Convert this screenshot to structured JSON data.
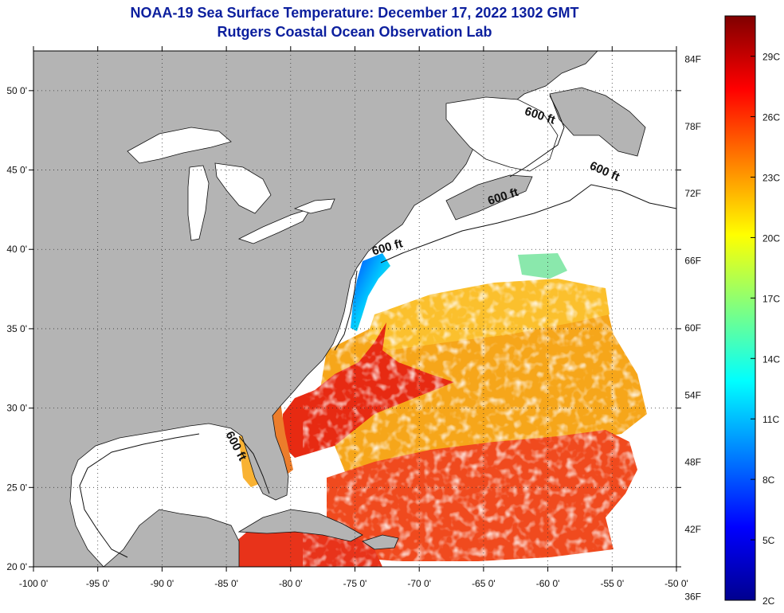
{
  "title": {
    "line1": "NOAA-19 Sea Surface Temperature:  December 17, 2022 1302 GMT",
    "line2": "Rutgers Coastal Ocean Observation Lab"
  },
  "map": {
    "lon_range": [
      -100,
      -50
    ],
    "lat_range": [
      20,
      52.5
    ],
    "lon_ticks": [
      {
        "value": -100,
        "label": "-100 0'"
      },
      {
        "value": -95,
        "label": "-95 0'"
      },
      {
        "value": -90,
        "label": "-90 0'"
      },
      {
        "value": -85,
        "label": "-85 0'"
      },
      {
        "value": -80,
        "label": "-80 0'"
      },
      {
        "value": -75,
        "label": "-75 0'"
      },
      {
        "value": -70,
        "label": "-70 0'"
      },
      {
        "value": -65,
        "label": "-65 0'"
      },
      {
        "value": -60,
        "label": "-60 0'"
      },
      {
        "value": -55,
        "label": "-55 0'"
      },
      {
        "value": -50,
        "label": "-50 0'"
      }
    ],
    "lat_ticks": [
      {
        "value": 20,
        "label": "20 0'"
      },
      {
        "value": 25,
        "label": "25 0'"
      },
      {
        "value": 30,
        "label": "30 0'"
      },
      {
        "value": 35,
        "label": "35 0'"
      },
      {
        "value": 40,
        "label": "40 0'"
      },
      {
        "value": 45,
        "label": "45 0'"
      },
      {
        "value": 50,
        "label": "50 0'"
      }
    ],
    "contour_labels": [
      {
        "text": "600 ft",
        "lon": -60.7,
        "lat": 48.2,
        "rotate": 18
      },
      {
        "text": "600 ft",
        "lon": -55.7,
        "lat": 44.7,
        "rotate": 24
      },
      {
        "text": "600 ft",
        "lon": -63.4,
        "lat": 43.1,
        "rotate": -18
      },
      {
        "text": "600 ft",
        "lon": -72.4,
        "lat": 39.9,
        "rotate": -16
      },
      {
        "text": "600 ft",
        "lon": -84.5,
        "lat": 27.5,
        "rotate": 62
      }
    ],
    "colors": {
      "land": "#b4b4b4",
      "ocean_no_data": "#ffffff",
      "grid": "#333333"
    }
  },
  "colorbar": {
    "fahrenheit_labels": [
      {
        "value": 84,
        "label": "84F"
      },
      {
        "value": 78,
        "label": "78F"
      },
      {
        "value": 72,
        "label": "72F"
      },
      {
        "value": 66,
        "label": "66F"
      },
      {
        "value": 60,
        "label": "60F"
      },
      {
        "value": 54,
        "label": "54F"
      },
      {
        "value": 48,
        "label": "48F"
      },
      {
        "value": 42,
        "label": "42F"
      },
      {
        "value": 36,
        "label": "36F"
      }
    ],
    "celsius_labels": [
      {
        "value": 29,
        "label": "29C"
      },
      {
        "value": 26,
        "label": "26C"
      },
      {
        "value": 23,
        "label": "23C"
      },
      {
        "value": 20,
        "label": "20C"
      },
      {
        "value": 17,
        "label": "17C"
      },
      {
        "value": 14,
        "label": "14C"
      },
      {
        "value": 11,
        "label": "11C"
      },
      {
        "value": 8,
        "label": "8C"
      },
      {
        "value": 5,
        "label": "5C"
      },
      {
        "value": 2,
        "label": "2C"
      }
    ],
    "range_c": [
      2,
      31
    ],
    "stops": [
      "#00008f",
      "#0000ff",
      "#0080ff",
      "#00ffff",
      "#80ff80",
      "#ffff00",
      "#ff8000",
      "#ff0000",
      "#800000"
    ]
  }
}
